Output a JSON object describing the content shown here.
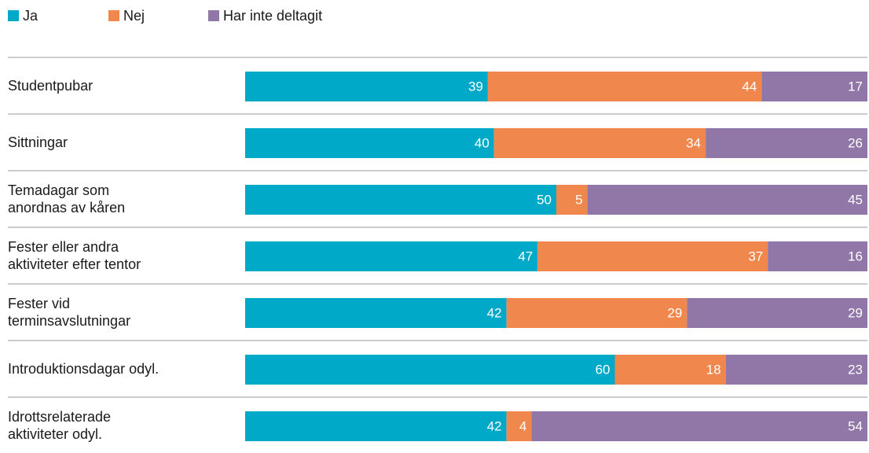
{
  "chart_data": {
    "type": "stacked-bar-horizontal",
    "categories": [
      [
        "Studentpubar"
      ],
      [
        "Sittningar"
      ],
      [
        "Temadagar som",
        "anordnas av kåren"
      ],
      [
        "Fester eller andra",
        "aktiviteter efter tentor"
      ],
      [
        "Fester vid",
        "terminsavslutningar"
      ],
      [
        "Introduktionsdagar odyl."
      ],
      [
        "Idrottsrelaterade",
        "aktiviteter odyl."
      ]
    ],
    "series": [
      {
        "name": "Ja",
        "color": "#00a9c8",
        "values": [
          39,
          40,
          50,
          47,
          42,
          60,
          42
        ]
      },
      {
        "name": "Nej",
        "color": "#f0884e",
        "values": [
          44,
          34,
          5,
          37,
          29,
          18,
          4
        ]
      },
      {
        "name": "Har inte deltagit",
        "color": "#9177a8",
        "values": [
          17,
          26,
          45,
          16,
          29,
          23,
          54
        ]
      }
    ],
    "legend": "top-left"
  }
}
